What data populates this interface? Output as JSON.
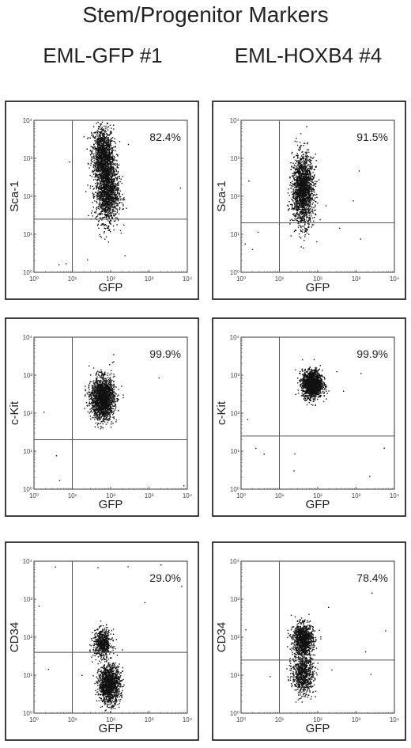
{
  "title": "Stem/Progenitor Markers",
  "columns": [
    "EML-GFP #1",
    "EML-HOXB4 #4"
  ],
  "chart_data": [
    {
      "type": "scatter",
      "panel": "row1-left",
      "xlabel": "GFP",
      "ylabel": "Sca-1",
      "xscale": "log",
      "yscale": "log",
      "xlim": [
        1,
        10000
      ],
      "ylim": [
        1,
        10000
      ],
      "x_ticks": [
        "10⁰",
        "10¹",
        "10²",
        "10³",
        "10⁴"
      ],
      "y_ticks": [
        "10⁰",
        "10¹",
        "10²",
        "10³",
        "10⁴"
      ],
      "annotation": "82.4%",
      "gate": {
        "x": 10,
        "y": 25
      },
      "clusters": [
        {
          "center": [
            60,
            1500
          ],
          "spread": [
            0.14,
            0.35
          ],
          "count": 900
        },
        {
          "center": [
            80,
            120
          ],
          "spread": [
            0.15,
            0.38
          ],
          "count": 1300
        },
        {
          "center": [
            70,
            700
          ],
          "spread": [
            0.13,
            0.3
          ],
          "count": 500
        }
      ]
    },
    {
      "type": "scatter",
      "panel": "row1-right",
      "xlabel": "GFP",
      "ylabel": "Sca-1",
      "xscale": "log",
      "yscale": "log",
      "xlim": [
        1,
        10000
      ],
      "ylim": [
        1,
        10000
      ],
      "x_ticks": [
        "10⁰",
        "10¹",
        "10²",
        "10³",
        "10⁴"
      ],
      "y_ticks": [
        "10⁰",
        "10¹",
        "10²",
        "10³",
        "10⁴"
      ],
      "annotation": "91.5%",
      "gate": {
        "x": 10,
        "y": 20
      },
      "clusters": [
        {
          "center": [
            40,
            150
          ],
          "spread": [
            0.14,
            0.45
          ],
          "count": 1800
        }
      ]
    },
    {
      "type": "scatter",
      "panel": "row2-left",
      "xlabel": "GFP",
      "ylabel": "c-Kit",
      "xscale": "log",
      "yscale": "log",
      "xlim": [
        1,
        10000
      ],
      "ylim": [
        1,
        10000
      ],
      "x_ticks": [
        "10⁰",
        "10¹",
        "10²",
        "10³",
        "10⁴"
      ],
      "y_ticks": [
        "10⁰",
        "10¹",
        "10²",
        "10³",
        "10⁴"
      ],
      "annotation": "99.9%",
      "gate": {
        "x": 10,
        "y": 20
      },
      "clusters": [
        {
          "center": [
            60,
            250
          ],
          "spread": [
            0.15,
            0.27
          ],
          "count": 1900
        }
      ]
    },
    {
      "type": "scatter",
      "panel": "row2-right",
      "xlabel": "GFP",
      "ylabel": "c-Kit",
      "xscale": "log",
      "yscale": "log",
      "xlim": [
        1,
        10000
      ],
      "ylim": [
        1,
        10000
      ],
      "x_ticks": [
        "10⁰",
        "10¹",
        "10²",
        "10³",
        "10⁴"
      ],
      "y_ticks": [
        "10⁰",
        "10¹",
        "10²",
        "10³",
        "10⁴"
      ],
      "annotation": "99.9%",
      "gate": {
        "x": 10,
        "y": 25
      },
      "clusters": [
        {
          "center": [
            70,
            600
          ],
          "spread": [
            0.13,
            0.18
          ],
          "count": 1600
        }
      ]
    },
    {
      "type": "scatter",
      "panel": "row3-left",
      "xlabel": "GFP",
      "ylabel": "CD34",
      "xscale": "log",
      "yscale": "log",
      "xlim": [
        1,
        10000
      ],
      "ylim": [
        1,
        10000
      ],
      "x_ticks": [
        "10⁰",
        "10¹",
        "10²",
        "10³",
        "10⁴"
      ],
      "y_ticks": [
        "10⁰",
        "10¹",
        "10²",
        "10³",
        "10⁴"
      ],
      "annotation": "29.0%",
      "gate": {
        "x": 10,
        "y": 40
      },
      "clusters": [
        {
          "center": [
            60,
            70
          ],
          "spread": [
            0.12,
            0.18
          ],
          "count": 600
        },
        {
          "center": [
            90,
            6
          ],
          "spread": [
            0.14,
            0.25
          ],
          "count": 1300
        }
      ]
    },
    {
      "type": "scatter",
      "panel": "row3-right",
      "xlabel": "GFP",
      "ylabel": "CD34",
      "xscale": "log",
      "yscale": "log",
      "xlim": [
        1,
        10000
      ],
      "ylim": [
        1,
        10000
      ],
      "x_ticks": [
        "10⁰",
        "10¹",
        "10²",
        "10³",
        "10⁴"
      ],
      "y_ticks": [
        "10⁰",
        "10¹",
        "10²",
        "10³",
        "10⁴"
      ],
      "annotation": "78.4%",
      "gate": {
        "x": 10,
        "y": 25
      },
      "clusters": [
        {
          "center": [
            40,
            90
          ],
          "spread": [
            0.13,
            0.2
          ],
          "count": 1000
        },
        {
          "center": [
            40,
            12
          ],
          "spread": [
            0.14,
            0.28
          ],
          "count": 800
        }
      ]
    }
  ]
}
